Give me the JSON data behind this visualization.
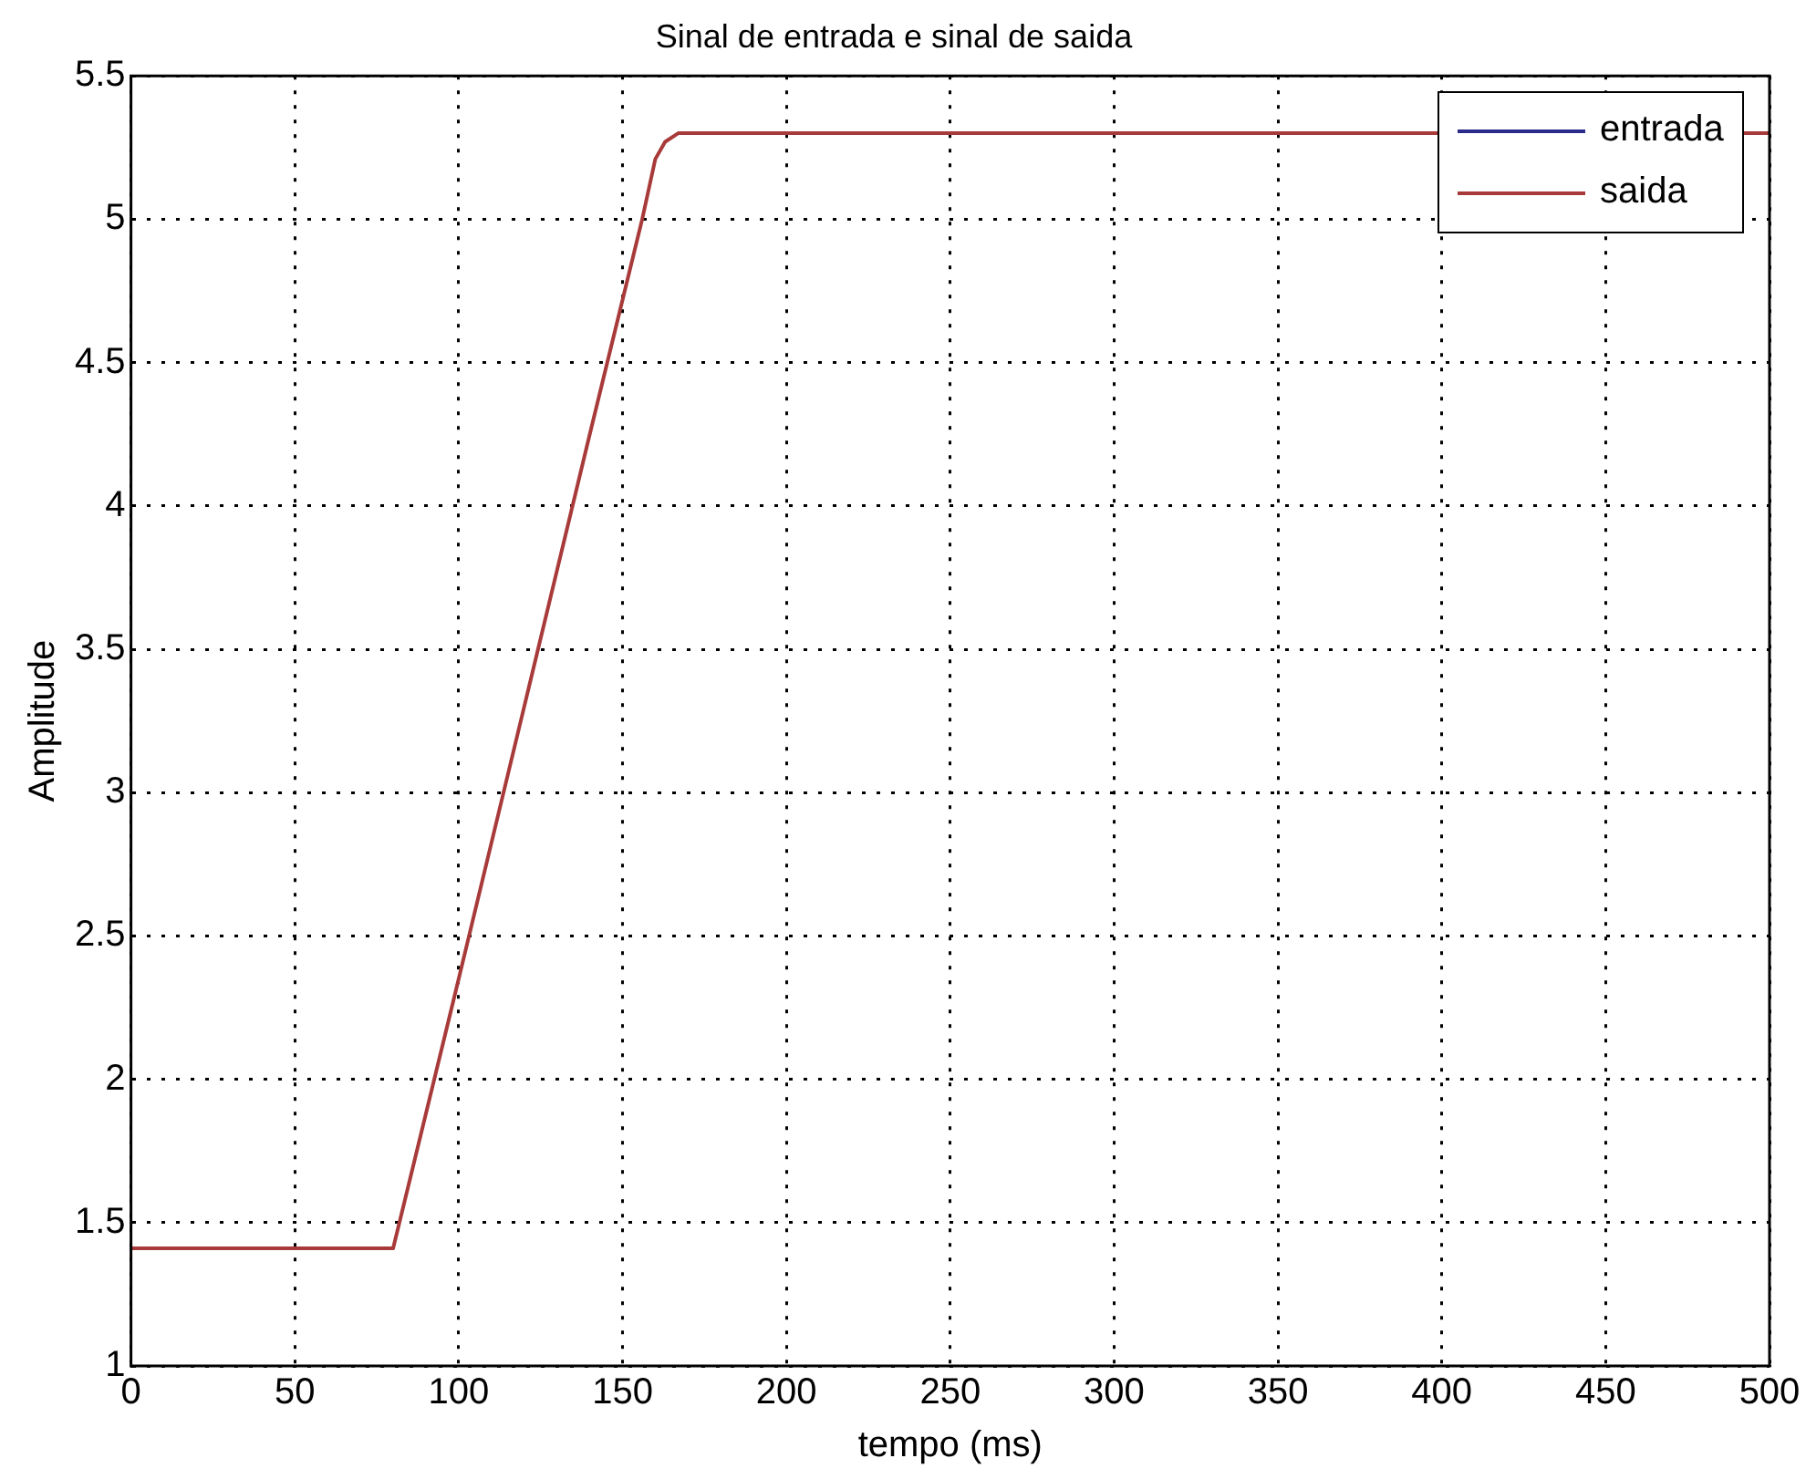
{
  "chart_data": {
    "type": "line",
    "title": "Sinal de entrada e sinal de saida",
    "xlabel": "tempo (ms)",
    "ylabel": "Amplitude",
    "x": [
      0,
      80,
      100,
      120,
      140,
      156,
      160,
      163,
      167,
      500
    ],
    "series": [
      {
        "name": "entrada",
        "color": "#2b2b8c",
        "values": [
          null,
          null,
          null,
          null,
          null,
          null,
          null,
          null,
          null,
          null
        ]
      },
      {
        "name": "saida",
        "color": "#a83a3a",
        "values": [
          1.41,
          1.41,
          2.35,
          3.3,
          4.25,
          5.0,
          5.21,
          5.27,
          5.3,
          5.3
        ]
      }
    ],
    "xlim": [
      0,
      500
    ],
    "xticks": [
      0,
      50,
      100,
      150,
      200,
      250,
      300,
      350,
      400,
      450,
      500
    ],
    "ylim": [
      1,
      5.5
    ],
    "yticks": [
      1,
      1.5,
      2,
      2.5,
      3,
      3.5,
      4,
      4.5,
      5,
      5.5
    ],
    "grid": true,
    "legend": "top right",
    "marker": "none",
    "line_style": "solid"
  }
}
